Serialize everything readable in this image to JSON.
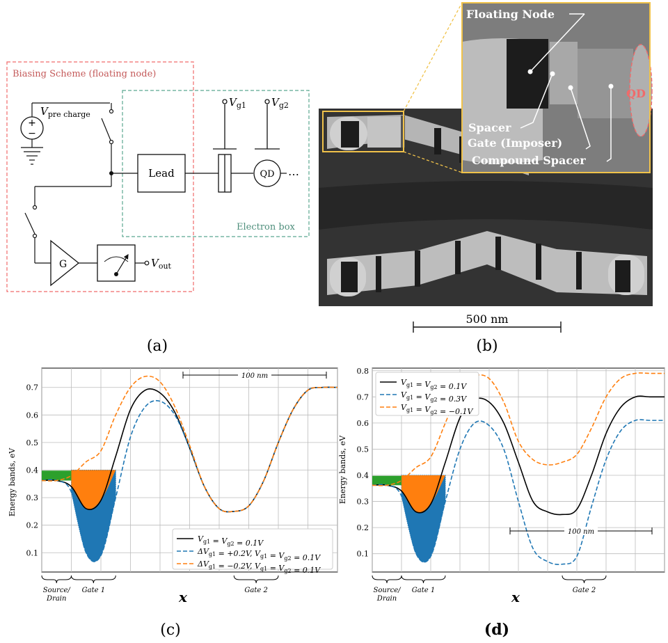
{
  "panel_a": {
    "label": "(a)",
    "biasing_title": "Biasing Scheme (floating node)",
    "electron_box": "Electron box",
    "v_pre": "V",
    "v_pre_sub": "pre charge",
    "vg1": "V",
    "vg1_sub": "g1",
    "vg2": "V",
    "vg2_sub": "g2",
    "lead": "Lead",
    "qd": "QD",
    "amp": "G",
    "vout": "V",
    "vout_sub": "out",
    "ellipsis": "⋯"
  },
  "panel_b": {
    "label": "(b)",
    "scalebar": "500 nm",
    "floating_node": "Floating Node",
    "spacer": "Spacer",
    "gate_imposer": "Gate (Imposer)",
    "compound_spacer": "Compound Spacer",
    "qd": "QD"
  },
  "panel_c": {
    "label": "(c)",
    "scale": "100 nm",
    "xlabel": "x",
    "ylabel": "Energy bands, eV",
    "regions": [
      "Source/",
      "Drain",
      "Gate 1",
      "Gate 2"
    ],
    "colors": {
      "black": "#000000",
      "blue": "#1f77b4",
      "orange": "#ff7f0e",
      "green": "#2ca02c"
    }
  },
  "panel_d": {
    "label": "(d)",
    "scale": "100 nm",
    "xlabel": "x",
    "ylabel": "Energy bands, eV",
    "regions": [
      "Source/",
      "Drain",
      "Gate 1",
      "Gate 2"
    ]
  },
  "chart_data": [
    {
      "type": "line",
      "ylabel": "Energy bands, eV",
      "xlabel": "x",
      "ylim": [
        0.03,
        0.77
      ],
      "yticks": [
        0.1,
        0.2,
        0.3,
        0.4,
        0.5,
        0.6,
        0.7
      ],
      "grid": true,
      "legend_position": "lower-right",
      "x": [
        0,
        5,
        10,
        15,
        20,
        25,
        30,
        35,
        40,
        45,
        50,
        55,
        60,
        65,
        70,
        75,
        80,
        85,
        90,
        95,
        100
      ],
      "series": [
        {
          "name": "V_{g1} = V_{g2} = 0.1V",
          "style": "solid",
          "color": "#000000",
          "values": [
            0.362,
            0.362,
            0.34,
            0.26,
            0.29,
            0.45,
            0.62,
            0.69,
            0.68,
            0.61,
            0.48,
            0.34,
            0.26,
            0.25,
            0.27,
            0.36,
            0.5,
            0.62,
            0.69,
            0.7,
            0.7
          ]
        },
        {
          "name": "ΔV_{g1} = +0.2V, V_{g1} = V_{g2} = 0.1V",
          "style": "dashed",
          "color": "#1f77b4",
          "values": [
            0.362,
            0.362,
            0.32,
            0.1,
            0.09,
            0.3,
            0.52,
            0.63,
            0.65,
            0.6,
            0.48,
            0.34,
            0.26,
            0.25,
            0.27,
            0.36,
            0.5,
            0.62,
            0.69,
            0.7,
            0.7
          ]
        },
        {
          "name": "ΔV_{g1} = −0.2V, V_{g1} = V_{g2} = 0.1V",
          "style": "dashed",
          "color": "#ff7f0e",
          "values": [
            0.362,
            0.362,
            0.38,
            0.43,
            0.47,
            0.6,
            0.7,
            0.74,
            0.72,
            0.63,
            0.49,
            0.34,
            0.26,
            0.25,
            0.27,
            0.36,
            0.5,
            0.62,
            0.69,
            0.7,
            0.7
          ]
        }
      ]
    },
    {
      "type": "line",
      "ylabel": "Energy bands, eV",
      "xlabel": "x",
      "ylim": [
        0.03,
        0.81
      ],
      "yticks": [
        0.1,
        0.2,
        0.3,
        0.4,
        0.5,
        0.6,
        0.7,
        0.8
      ],
      "grid": true,
      "legend_position": "top-left",
      "x": [
        0,
        5,
        10,
        15,
        20,
        25,
        30,
        35,
        40,
        45,
        50,
        55,
        60,
        65,
        70,
        75,
        80,
        85,
        90,
        95,
        100
      ],
      "series": [
        {
          "name": "V_{g1} = V_{g2} = 0.1V",
          "style": "solid",
          "color": "#000000",
          "values": [
            0.362,
            0.362,
            0.34,
            0.26,
            0.29,
            0.45,
            0.62,
            0.69,
            0.68,
            0.6,
            0.45,
            0.3,
            0.26,
            0.25,
            0.27,
            0.4,
            0.56,
            0.66,
            0.7,
            0.7,
            0.7
          ]
        },
        {
          "name": "V_{g1} = V_{g2} = 0.3V",
          "style": "dashed",
          "color": "#1f77b4",
          "values": [
            0.362,
            0.362,
            0.32,
            0.1,
            0.09,
            0.3,
            0.5,
            0.6,
            0.59,
            0.5,
            0.3,
            0.12,
            0.07,
            0.06,
            0.09,
            0.28,
            0.46,
            0.57,
            0.61,
            0.61,
            0.61
          ]
        },
        {
          "name": "V_{g1} = V_{g2} = −0.1V",
          "style": "dashed",
          "color": "#ff7f0e",
          "values": [
            0.362,
            0.362,
            0.38,
            0.43,
            0.47,
            0.6,
            0.73,
            0.78,
            0.77,
            0.68,
            0.53,
            0.46,
            0.44,
            0.45,
            0.48,
            0.58,
            0.7,
            0.77,
            0.79,
            0.79,
            0.79
          ]
        }
      ]
    }
  ]
}
